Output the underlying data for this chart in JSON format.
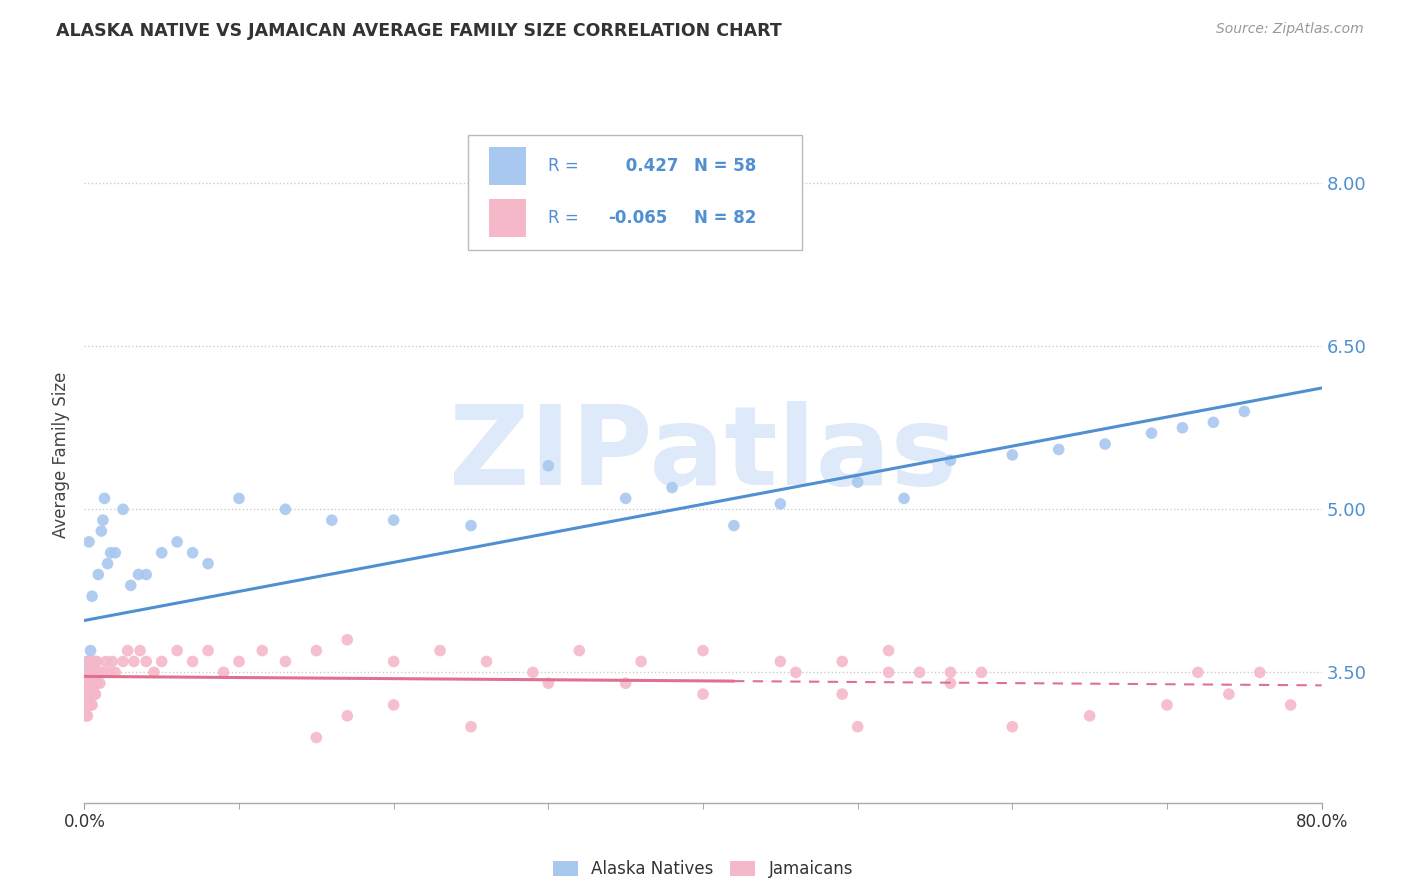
{
  "title": "ALASKA NATIVE VS JAMAICAN AVERAGE FAMILY SIZE CORRELATION CHART",
  "source": "Source: ZipAtlas.com",
  "ylabel": "Average Family Size",
  "xlim": [
    0.0,
    0.8
  ],
  "ylim": [
    2.3,
    8.7
  ],
  "yticks": [
    3.5,
    5.0,
    6.5,
    8.0
  ],
  "xticks": [
    0.0,
    0.8
  ],
  "xticklabels": [
    "0.0%",
    "80.0%"
  ],
  "background_color": "#ffffff",
  "grid_color": "#cccccc",
  "alaska_color": "#a8c8f0",
  "jamaican_color": "#f5b8c8",
  "alaska_line_color": "#5090d0",
  "jamaican_line_color": "#e07090",
  "legend_label1": "Alaska Natives",
  "legend_label2": "Jamaicans",
  "r1": "0.427",
  "n1": "58",
  "r2": "-0.065",
  "n2": "82",
  "watermark": "ZIPatlas",
  "alaska_x": [
    0.001,
    0.001,
    0.001,
    0.002,
    0.002,
    0.002,
    0.002,
    0.003,
    0.003,
    0.003,
    0.003,
    0.004,
    0.004,
    0.004,
    0.005,
    0.005,
    0.005,
    0.006,
    0.006,
    0.007,
    0.007,
    0.008,
    0.009,
    0.01,
    0.011,
    0.012,
    0.013,
    0.015,
    0.017,
    0.02,
    0.025,
    0.03,
    0.035,
    0.04,
    0.05,
    0.06,
    0.07,
    0.08,
    0.1,
    0.13,
    0.16,
    0.2,
    0.25,
    0.3,
    0.35,
    0.38,
    0.42,
    0.45,
    0.5,
    0.53,
    0.56,
    0.6,
    0.63,
    0.66,
    0.69,
    0.71,
    0.73,
    0.75
  ],
  "alaska_y": [
    3.2,
    3.3,
    3.5,
    3.2,
    3.4,
    3.5,
    3.6,
    3.3,
    3.5,
    3.6,
    4.7,
    3.4,
    3.5,
    3.7,
    3.3,
    3.5,
    4.2,
    3.4,
    3.6,
    3.3,
    3.6,
    3.4,
    4.4,
    3.5,
    4.8,
    4.9,
    5.1,
    4.5,
    4.6,
    4.6,
    5.0,
    4.3,
    4.4,
    4.4,
    4.6,
    4.7,
    4.6,
    4.5,
    5.1,
    5.0,
    4.9,
    4.9,
    4.85,
    5.4,
    5.1,
    5.2,
    4.85,
    5.05,
    5.25,
    5.1,
    5.45,
    5.5,
    5.55,
    5.6,
    5.7,
    5.75,
    5.8,
    5.9
  ],
  "jamaican_x": [
    0.001,
    0.001,
    0.001,
    0.001,
    0.002,
    0.002,
    0.002,
    0.002,
    0.002,
    0.003,
    0.003,
    0.003,
    0.003,
    0.004,
    0.004,
    0.004,
    0.005,
    0.005,
    0.005,
    0.005,
    0.006,
    0.006,
    0.007,
    0.007,
    0.008,
    0.008,
    0.009,
    0.01,
    0.011,
    0.012,
    0.014,
    0.016,
    0.018,
    0.02,
    0.025,
    0.028,
    0.032,
    0.036,
    0.04,
    0.045,
    0.05,
    0.06,
    0.07,
    0.08,
    0.09,
    0.1,
    0.115,
    0.13,
    0.15,
    0.17,
    0.2,
    0.23,
    0.26,
    0.29,
    0.32,
    0.36,
    0.4,
    0.45,
    0.49,
    0.52,
    0.54,
    0.56,
    0.58,
    0.56,
    0.52,
    0.49,
    0.46,
    0.4,
    0.35,
    0.3,
    0.25,
    0.2,
    0.17,
    0.15,
    0.5,
    0.6,
    0.65,
    0.7,
    0.72,
    0.74,
    0.76,
    0.78
  ],
  "jamaican_y": [
    3.1,
    3.2,
    3.3,
    3.4,
    3.1,
    3.2,
    3.3,
    3.4,
    3.5,
    3.2,
    3.3,
    3.5,
    3.6,
    3.2,
    3.4,
    3.5,
    3.2,
    3.3,
    3.5,
    3.6,
    3.3,
    3.5,
    3.3,
    3.5,
    3.4,
    3.6,
    3.5,
    3.4,
    3.5,
    3.5,
    3.6,
    3.5,
    3.6,
    3.5,
    3.6,
    3.7,
    3.6,
    3.7,
    3.6,
    3.5,
    3.6,
    3.7,
    3.6,
    3.7,
    3.5,
    3.6,
    3.7,
    3.6,
    3.7,
    3.8,
    3.6,
    3.7,
    3.6,
    3.5,
    3.7,
    3.6,
    3.7,
    3.6,
    3.6,
    3.5,
    3.5,
    3.4,
    3.5,
    3.5,
    3.7,
    3.3,
    3.5,
    3.3,
    3.4,
    3.4,
    3.0,
    3.2,
    3.1,
    2.9,
    3.0,
    3.0,
    3.1,
    3.2,
    3.5,
    3.3,
    3.5,
    3.2
  ]
}
